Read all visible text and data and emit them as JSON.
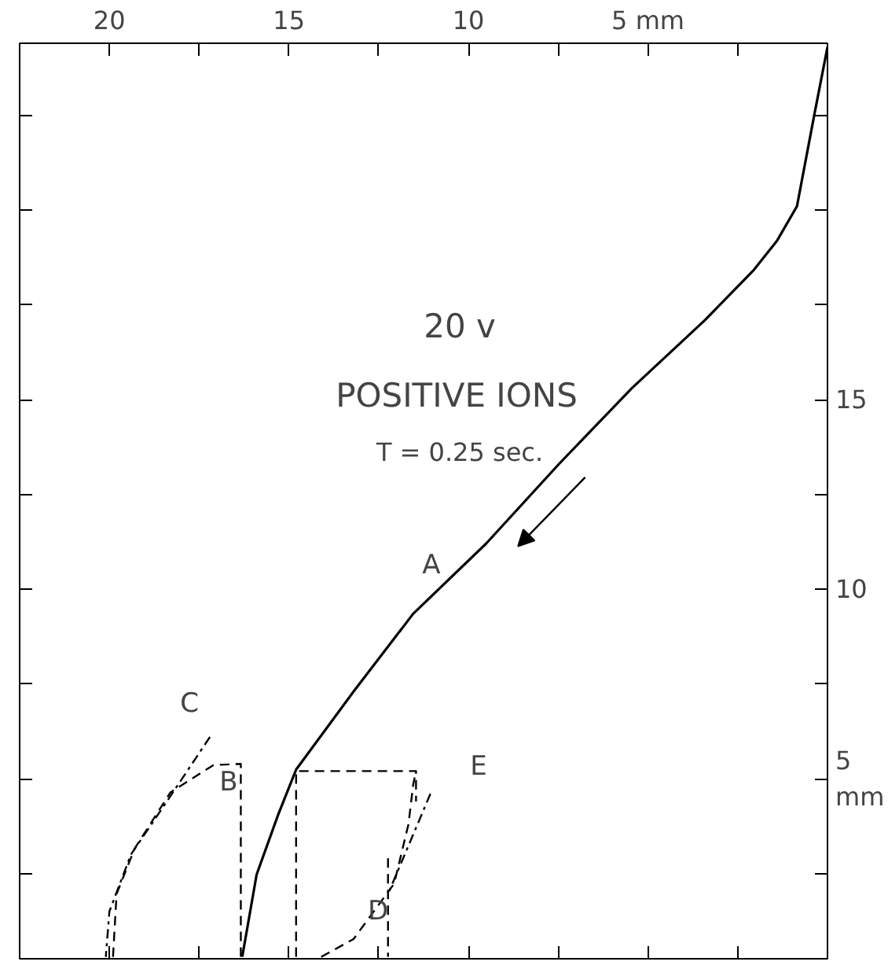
{
  "chart_data": {
    "type": "line",
    "xlim": [
      22.5,
      0
    ],
    "ylim": [
      0.25,
      24.4
    ],
    "xticks": [
      {
        "value": 20,
        "label": "20"
      },
      {
        "value": 17.5,
        "label": null
      },
      {
        "value": 15,
        "label": "15"
      },
      {
        "value": 12.5,
        "label": null
      },
      {
        "value": 10,
        "label": "10"
      },
      {
        "value": 7.5,
        "label": null
      },
      {
        "value": 5,
        "label": "5 mm"
      },
      {
        "value": 2.5,
        "label": null
      }
    ],
    "yticks": [
      {
        "value": 2.5,
        "label": null
      },
      {
        "value": 5,
        "label": "5\nmm"
      },
      {
        "value": 7.5,
        "label": null
      },
      {
        "value": 10,
        "label": "10"
      },
      {
        "value": 12.5,
        "label": null
      },
      {
        "value": 15,
        "label": "15"
      },
      {
        "value": 17.5,
        "label": null
      },
      {
        "value": 20,
        "label": null
      },
      {
        "value": 22.5,
        "label": null
      }
    ],
    "grid": false,
    "marker": "none",
    "series": [
      {
        "color": "#000000",
        "line_style": "solid",
        "x": [
          0.0,
          0.37,
          0.85,
          1.4,
          2.07,
          3.41,
          5.45,
          7.48,
          9.51,
          11.54,
          13.2,
          14.8,
          15.3,
          15.9,
          16.3
        ],
        "values": [
          24.3,
          22.5,
          20.1,
          19.2,
          18.4,
          17.1,
          15.3,
          13.3,
          11.2,
          9.35,
          7.3,
          5.24,
          4.05,
          2.47,
          0.3
        ]
      },
      {
        "color": "#000000",
        "line_style": "dashed",
        "x": [
          16.34,
          16.34,
          17.1,
          18.3,
          19.3,
          19.8,
          19.9
        ],
        "values": [
          0.3,
          5.39,
          5.36,
          4.64,
          3.15,
          1.96,
          0.3
        ]
      },
      {
        "color": "#000000",
        "line_style": "dashdot",
        "x": [
          17.2,
          18.4,
          19.4,
          20.0,
          20.1
        ],
        "values": [
          6.1,
          4.4,
          3.0,
          1.5,
          0.3
        ]
      },
      {
        "color": "#000000",
        "line_style": "dashed",
        "x": [
          14.8,
          14.8,
          11.46,
          11.46
        ],
        "values": [
          0.3,
          5.2,
          5.2,
          4.4
        ]
      },
      {
        "color": "#000000",
        "line_style": "dashed",
        "x": [
          12.24,
          12.24
        ],
        "values": [
          2.9,
          0.3
        ]
      },
      {
        "color": "#000000",
        "line_style": "dashed",
        "x": [
          14.1,
          13.2,
          12.07,
          11.67,
          11.54,
          11.46
        ],
        "values": [
          0.3,
          0.77,
          2.23,
          3.8,
          4.84,
          5.2
        ]
      },
      {
        "color": "#000000",
        "line_style": "dashdot",
        "x": [
          11.06,
          12.24
        ],
        "values": [
          4.6,
          1.96
        ]
      }
    ],
    "annotations": [
      "A",
      "B",
      "C",
      "D",
      "E",
      "20 v",
      "POSITIVE IONS",
      "T = 0.25 sec."
    ]
  }
}
